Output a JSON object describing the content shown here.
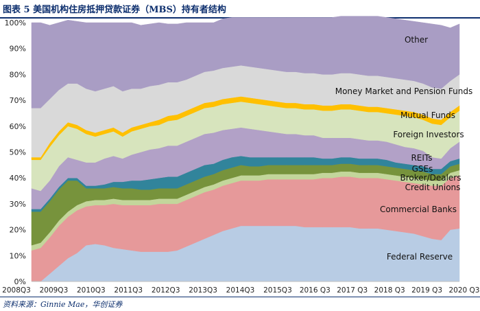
{
  "figure": {
    "title": "图表 5 美国机构住房抵押贷款证券（MBS）持有者结构",
    "source": "资料来源：Ginnie Mae，华创证券"
  },
  "chart_data": {
    "type": "area",
    "stacked": true,
    "x": [
      "2008Q3",
      "2008Q4",
      "2009Q1",
      "2009Q2",
      "2009Q3",
      "2009Q4",
      "2010Q1",
      "2010Q2",
      "2010Q3",
      "2010Q4",
      "2011Q1",
      "2011Q2",
      "2011Q3",
      "2011Q4",
      "2012Q1",
      "2012Q2",
      "2012Q3",
      "2012Q4",
      "2013Q1",
      "2013Q2",
      "2013Q3",
      "2013Q4",
      "2014Q1",
      "2014Q2",
      "2014Q3",
      "2014Q4",
      "2015Q1",
      "2015Q2",
      "2015Q3",
      "2015Q4",
      "2016Q1",
      "2016Q2",
      "2016 Q3",
      "2016Q4",
      "2017Q1",
      "2017Q2",
      "2017 Q3",
      "2017Q4",
      "2018Q1",
      "2018Q2",
      "2018 Q3",
      "2018Q4",
      "2019Q1",
      "2019Q2",
      "2019 Q3",
      "2019Q4",
      "2020Q1",
      "2020 Q2"
    ],
    "tick_labels": [
      "2008Q3",
      "2009Q3",
      "2010Q3",
      "2011Q3",
      "2012Q3",
      "2013Q3",
      "2014Q3",
      "2015Q3",
      "2016 Q3",
      "2017 Q3",
      "2018 Q3",
      "2019 Q3",
      "2020 Q3"
    ],
    "y_ticks": [
      "0%",
      "10%",
      "20%",
      "30%",
      "40%",
      "50%",
      "60%",
      "70%",
      "80%",
      "90%",
      "100%"
    ],
    "ylim": [
      0,
      100
    ],
    "series": [
      {
        "name": "Federal Reserve",
        "color": "#b8cce4",
        "values": [
          0,
          0,
          3,
          6,
          9,
          11,
          14,
          14.5,
          14,
          13,
          12.5,
          12,
          11.5,
          11.5,
          11.5,
          11.5,
          12,
          13.5,
          15,
          16.5,
          18,
          19.5,
          20.5,
          21.5,
          21.5,
          21.5,
          21.5,
          21.5,
          21.5,
          21.5,
          21,
          21,
          21,
          21,
          21,
          21,
          20.5,
          20.5,
          20.5,
          20,
          19.5,
          19,
          18.5,
          17.5,
          16.5,
          16,
          20,
          20.5
        ]
      },
      {
        "name": "Commercial Banks",
        "color": "#e6999a",
        "values": [
          12,
          13,
          14,
          15.5,
          16,
          16.5,
          15,
          15,
          15.5,
          17,
          17,
          17.5,
          18,
          18,
          18.5,
          18.5,
          18,
          18,
          18,
          18,
          17.5,
          17.5,
          17.5,
          17.5,
          17.5,
          17.5,
          18,
          18,
          18,
          18,
          18.5,
          18.5,
          19,
          19,
          19.5,
          19.5,
          19.5,
          19.5,
          19.5,
          19.5,
          19.5,
          19.5,
          19.5,
          20,
          20.5,
          21,
          20,
          20.5
        ]
      },
      {
        "name": "Credit Unions",
        "color": "#c3d69b",
        "values": [
          2,
          2,
          2,
          2,
          2,
          2,
          2,
          2,
          2,
          2,
          2,
          2,
          2,
          2,
          2,
          2,
          2,
          2,
          2,
          2,
          2,
          2,
          2,
          2,
          2,
          2,
          2,
          2,
          2,
          2,
          2,
          2,
          2,
          2,
          2,
          2,
          2,
          2,
          2,
          2,
          2,
          2,
          2,
          2,
          2,
          2,
          2,
          2
        ]
      },
      {
        "name": "Broker/Dealers",
        "color": "#77933c",
        "values": [
          13,
          12,
          12,
          12,
          12,
          9.5,
          5,
          4.5,
          4.5,
          4.5,
          4.5,
          4.5,
          4,
          4,
          4,
          4,
          4,
          4,
          4,
          4,
          4,
          4,
          4,
          4,
          3.5,
          3.5,
          3.5,
          3.5,
          3.5,
          3.5,
          3.5,
          3.5,
          3,
          3,
          3,
          3,
          3,
          3,
          3,
          3,
          3,
          3,
          3,
          3,
          2.5,
          2.5,
          2.5,
          2.5
        ]
      },
      {
        "name": "GSEs",
        "color": "#31849b",
        "values": [
          1,
          1,
          1,
          1,
          1,
          1,
          1,
          1,
          1.5,
          2,
          2.5,
          3,
          3.5,
          4,
          4,
          4.5,
          4.5,
          4.5,
          4.5,
          4.5,
          4,
          4,
          4,
          3.5,
          3.5,
          3.5,
          3,
          3,
          3,
          3,
          3,
          3,
          2.5,
          2.5,
          2.5,
          2.5,
          2.5,
          2.5,
          2.5,
          2.5,
          2,
          2,
          2,
          2,
          2,
          2,
          2,
          2
        ]
      },
      {
        "name": "REITs",
        "color": "#b2a1c7",
        "values": [
          8,
          7,
          7,
          8,
          8,
          7,
          9,
          9,
          10,
          10,
          9,
          10,
          11,
          11.5,
          11.5,
          12,
          12,
          12,
          12,
          12,
          12,
          11.5,
          11,
          11,
          11,
          10.5,
          10,
          9.5,
          9,
          9,
          8.5,
          8.5,
          8,
          8,
          7.5,
          7.5,
          7.5,
          7,
          7,
          7,
          7,
          6.5,
          6.5,
          6,
          4.5,
          4,
          5,
          6.5
        ]
      },
      {
        "name": "Foreign Investors",
        "color": "#d7e4bd",
        "values": [
          11,
          12,
          13,
          12,
          12,
          12,
          11,
          10,
          9.5,
          9.5,
          8.5,
          9,
          9,
          9,
          9,
          9.5,
          10,
          10,
          10,
          10,
          10,
          10,
          10,
          10,
          10,
          10,
          10,
          10,
          10,
          10,
          10,
          10,
          10.5,
          10.5,
          11,
          11,
          11,
          11,
          11,
          11,
          11.5,
          12,
          12,
          12,
          13,
          13,
          12,
          12
        ]
      },
      {
        "name": "Mutual Funds",
        "color": "#ffc000",
        "values": [
          1,
          1,
          1.5,
          1.5,
          1.5,
          1.5,
          1.5,
          1.5,
          1.5,
          1.5,
          1.5,
          1.5,
          1.5,
          1.5,
          2,
          2,
          2,
          2,
          2,
          2,
          2,
          2,
          2,
          2,
          2,
          2,
          2,
          2,
          2,
          2,
          2,
          2,
          2,
          2,
          2,
          2,
          2,
          2,
          2,
          2,
          2,
          2,
          2,
          2,
          2,
          2,
          2,
          2
        ]
      },
      {
        "name": "Money Market and Pension Funds",
        "color": "#d9d9d9",
        "values": [
          19,
          19,
          17,
          16,
          15,
          16,
          16,
          16,
          16,
          16,
          16,
          15,
          14,
          14,
          13.5,
          13,
          12.5,
          12,
          12,
          12,
          12,
          12,
          12,
          12,
          12,
          12,
          12,
          12,
          12,
          12,
          12,
          12,
          12,
          12,
          12,
          12,
          12,
          12,
          12,
          12,
          12,
          12,
          12,
          12,
          12,
          12,
          12,
          12
        ]
      },
      {
        "name": "Other",
        "color": "#a99dc4",
        "values": [
          33,
          33,
          28.5,
          26,
          24.5,
          24,
          25.5,
          26.5,
          25.5,
          24.5,
          26.5,
          25.5,
          24.5,
          24,
          24,
          22.5,
          22.5,
          22,
          20.5,
          19,
          18.5,
          19,
          19,
          18.5,
          19,
          19.5,
          20,
          20.5,
          21,
          21,
          21.5,
          21.5,
          22,
          22,
          22,
          22,
          22.5,
          23,
          23,
          23,
          23,
          23,
          23,
          23.5,
          24.5,
          24.5,
          20.5,
          19.5
        ]
      }
    ],
    "annotations": [
      {
        "text": "Other",
        "series": "Other"
      },
      {
        "text": "Money Market and Pension Funds",
        "series": "Money Market and Pension Funds"
      },
      {
        "text": "Mutual Funds",
        "series": "Mutual Funds"
      },
      {
        "text": "Foreign Investors",
        "series": "Foreign Investors"
      },
      {
        "text": "REITs",
        "series": "REITs"
      },
      {
        "text": "GSEs",
        "series": "GSEs"
      },
      {
        "text": "Broker/Dealers",
        "series": "Broker/Dealers"
      },
      {
        "text": "Credit Unions",
        "series": "Credit Unions"
      },
      {
        "text": "Commercial Banks",
        "series": "Commercial Banks"
      },
      {
        "text": "Federal Reserve",
        "series": "Federal Reserve"
      }
    ]
  }
}
